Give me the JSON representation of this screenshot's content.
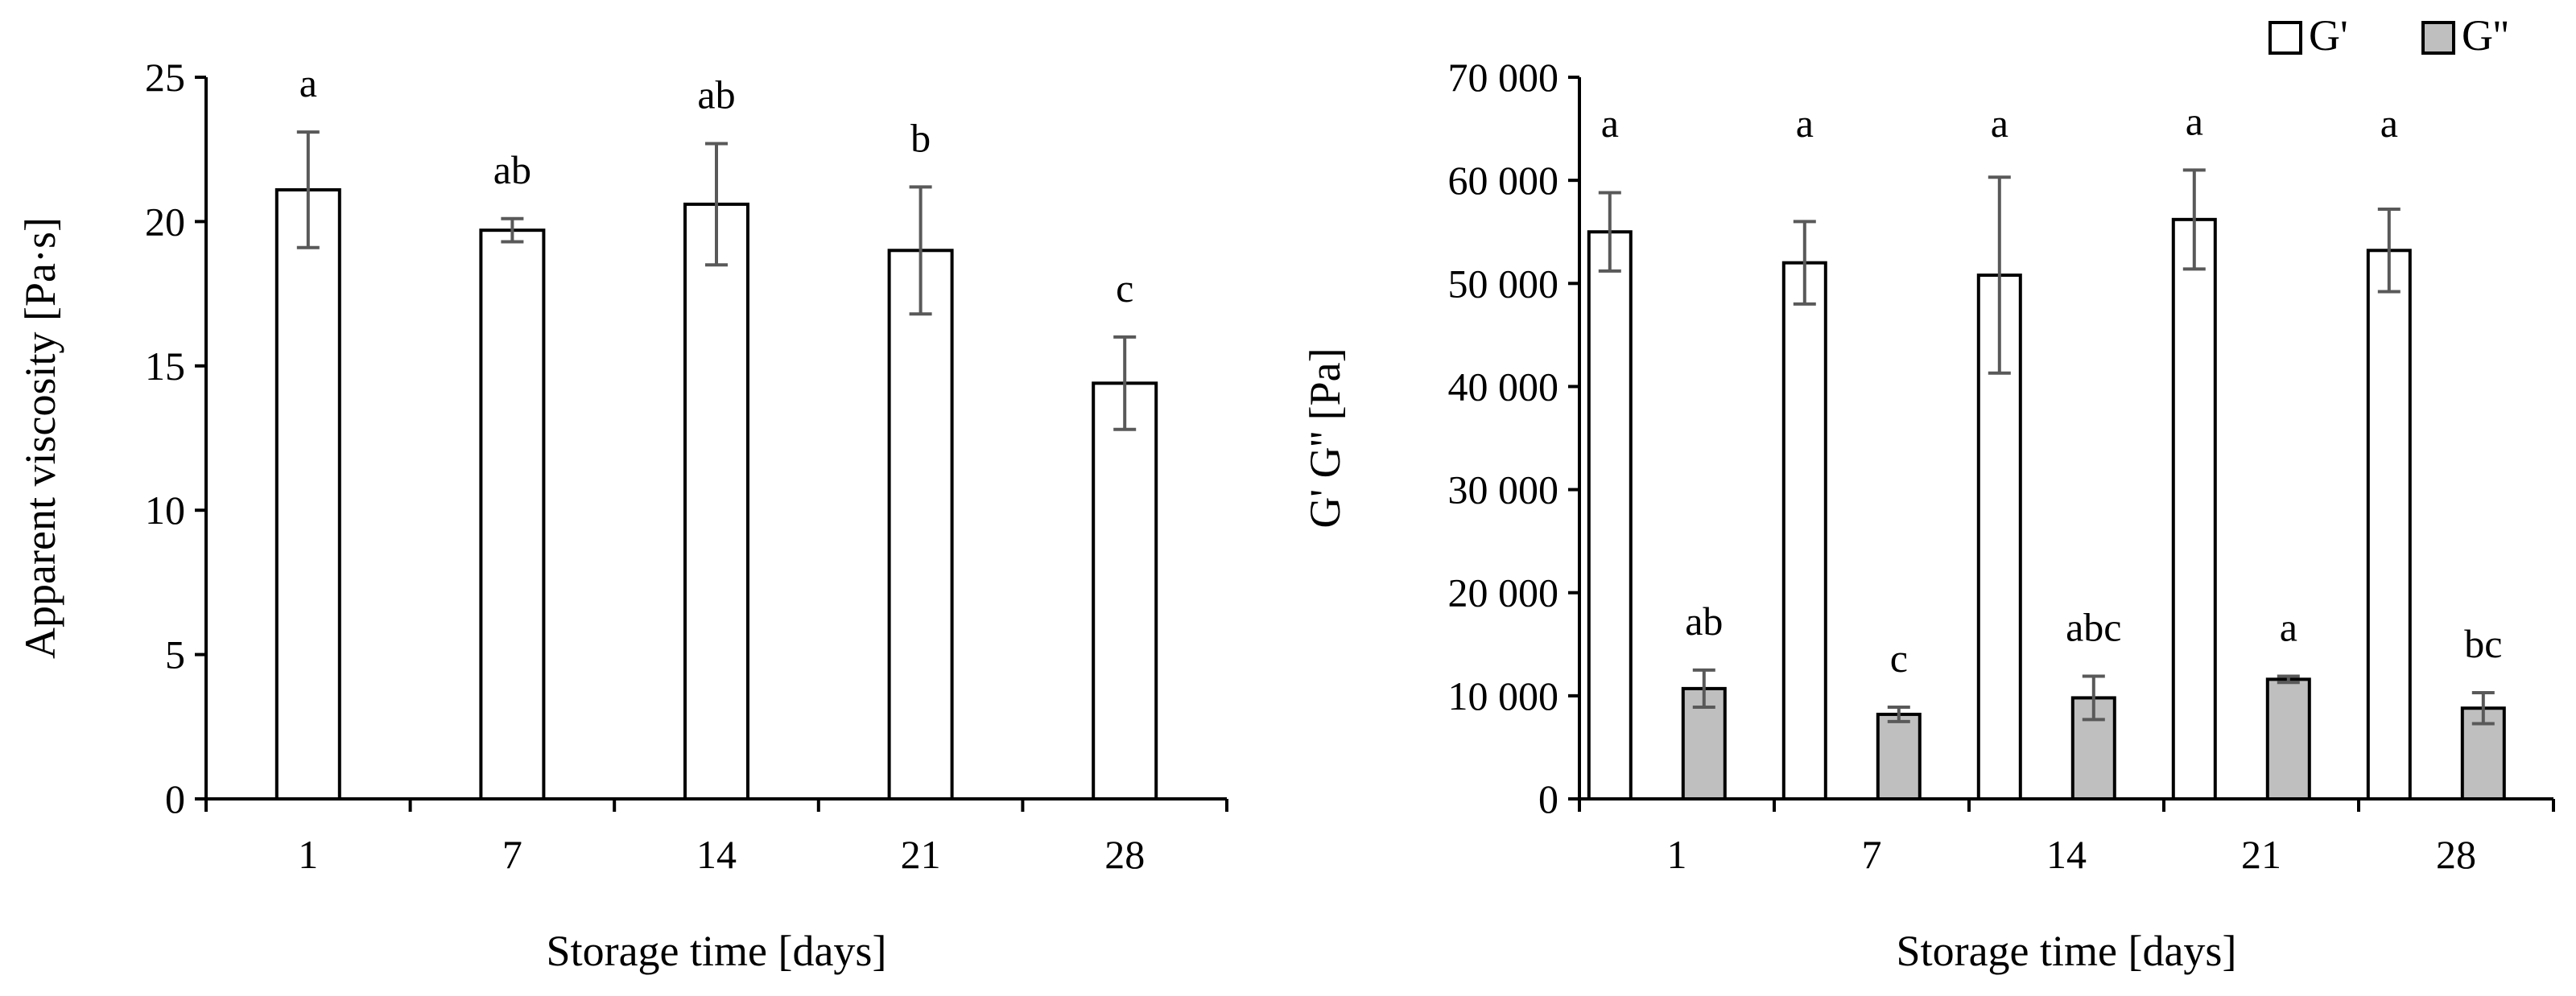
{
  "chart_data": [
    {
      "type": "bar",
      "categories": [
        "1",
        "7",
        "14",
        "21",
        "28"
      ],
      "series": [
        {
          "values": [
            21.1,
            19.7,
            20.6,
            19.0,
            14.4
          ],
          "error": [
            2.0,
            0.4,
            2.1,
            2.2,
            1.6
          ],
          "significance": [
            "a",
            "ab",
            "ab",
            "b",
            "c"
          ],
          "color": "#ffffff"
        }
      ],
      "xlabel": "Storage time [days]",
      "ylabel": "Apparent viscosity [Pa·s]",
      "ylim": [
        0,
        25
      ],
      "yticks": [
        0,
        5,
        10,
        15,
        20,
        25
      ],
      "ytick_labels": [
        "0",
        "5",
        "10",
        "15",
        "20",
        "25"
      ],
      "grid": false
    },
    {
      "type": "bar",
      "categories": [
        "1",
        "7",
        "14",
        "21",
        "28"
      ],
      "series": [
        {
          "name": "G'",
          "values": [
            55000,
            52000,
            50800,
            56200,
            53200
          ],
          "error": [
            3800,
            4000,
            9500,
            4800,
            4000
          ],
          "significance": [
            "a",
            "a",
            "a",
            "a",
            "a"
          ],
          "color": "#ffffff"
        },
        {
          "name": "G''",
          "values": [
            10700,
            8200,
            9800,
            11600,
            8800
          ],
          "error": [
            1800,
            700,
            2100,
            300,
            1500
          ],
          "significance": [
            "ab",
            "c",
            "abc",
            "a",
            "bc"
          ],
          "color": "#bfbfbf"
        }
      ],
      "xlabel": "Storage time [days]",
      "ylabel": "G' G'' [Pa]",
      "ylim": [
        0,
        70000
      ],
      "yticks": [
        0,
        10000,
        20000,
        30000,
        40000,
        50000,
        60000,
        70000
      ],
      "ytick_labels": [
        "0",
        "10 000",
        "20 000",
        "30 000",
        "40 000",
        "50 000",
        "60 000",
        "70 000"
      ],
      "legend_position": "top-right",
      "grid": false
    }
  ]
}
